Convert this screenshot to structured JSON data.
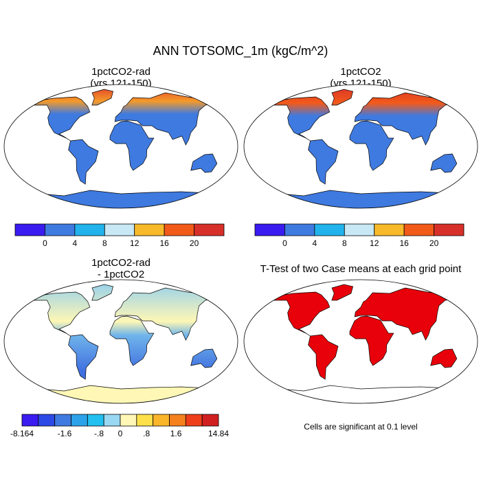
{
  "title": "ANN TOTSOMC_1m (kgC/m^2)",
  "panels": [
    {
      "title": [
        "1pctCO2-rad",
        "(yrs 121-150)"
      ],
      "colorbar": {
        "colors": [
          "#3a1bf0",
          "#3f7ae0",
          "#22b3ec",
          "#c7e8f4",
          "#f8b92a",
          "#f25a1a",
          "#d7302a"
        ],
        "labels": [
          "0",
          "4",
          "8",
          "12",
          "16",
          "20"
        ]
      }
    },
    {
      "title": [
        "1pctCO2",
        "(yrs 121-150)"
      ],
      "colorbar": {
        "colors": [
          "#3a1bf0",
          "#3f7ae0",
          "#22b3ec",
          "#c7e8f4",
          "#f8b92a",
          "#f25a1a",
          "#d7302a"
        ],
        "labels": [
          "0",
          "4",
          "8",
          "12",
          "16",
          "20"
        ]
      }
    },
    {
      "title": [
        "1pctCO2-rad",
        "- 1pctCO2"
      ],
      "colorbar": {
        "colors": [
          "#3a1bf0",
          "#2d4ae6",
          "#3f7ae0",
          "#2ba2ea",
          "#22c0f0",
          "#99d8f2",
          "#fef7b5",
          "#fde04a",
          "#fbb52a",
          "#f5801e",
          "#ee3f1a",
          "#d02020"
        ],
        "labels": [
          "-8.164",
          "-1.6",
          "-.8",
          "0",
          ".8",
          "1.6",
          "14.84"
        ]
      }
    },
    {
      "title": [
        "T-Test of two Case means at each grid point"
      ],
      "note": "Cells are significant at 0.1 level"
    }
  ]
}
